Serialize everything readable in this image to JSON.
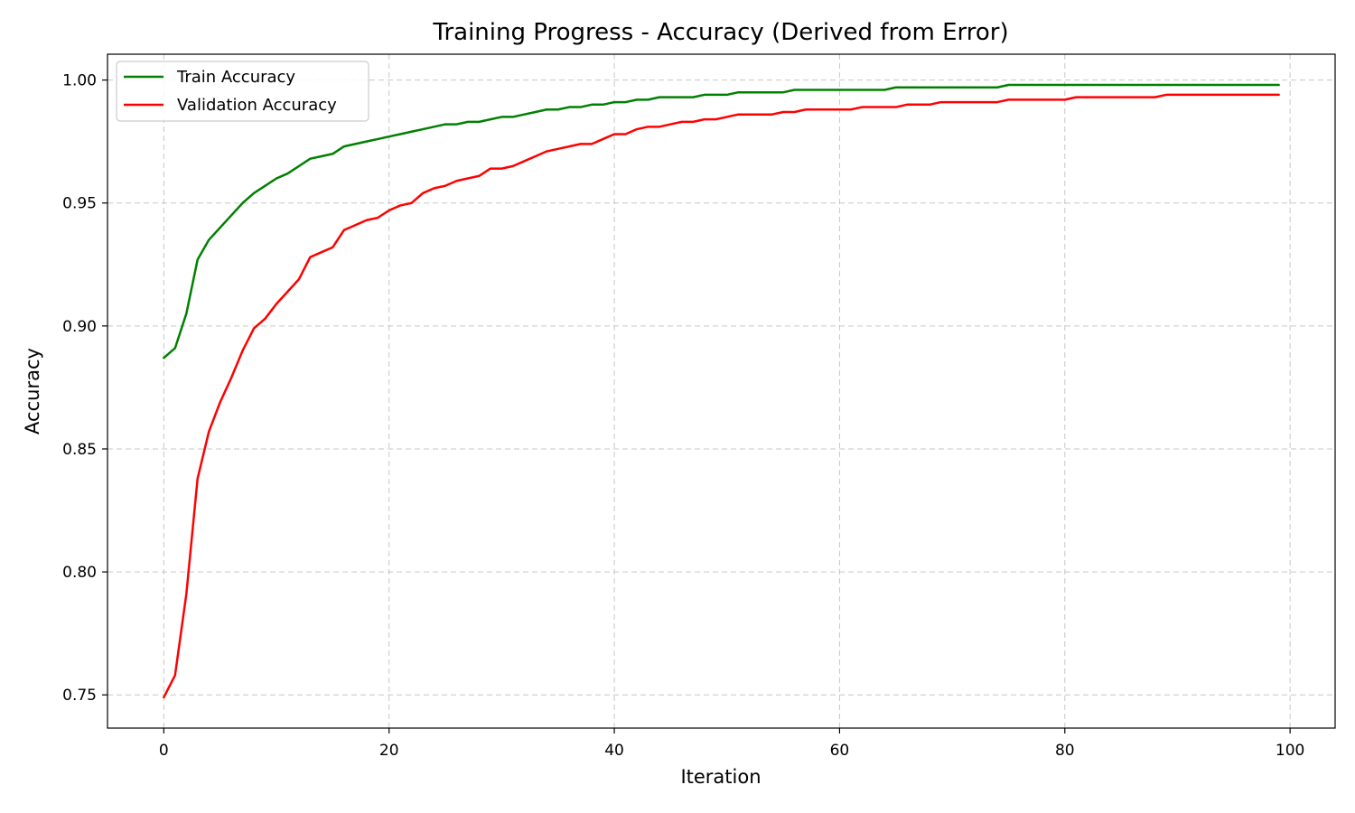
{
  "chart_data": {
    "type": "line",
    "title": "Training Progress - Accuracy (Derived from Error)",
    "xlabel": "Iteration",
    "ylabel": "Accuracy",
    "xlim": [
      -5,
      104
    ],
    "ylim": [
      0.7365,
      1.0105
    ],
    "xticks": [
      0,
      20,
      40,
      60,
      80,
      100
    ],
    "yticks": [
      0.75,
      0.8,
      0.85,
      0.9,
      0.95,
      1.0
    ],
    "xtick_labels": [
      "0",
      "20",
      "40",
      "60",
      "80",
      "100"
    ],
    "ytick_labels": [
      "0.75",
      "0.80",
      "0.85",
      "0.90",
      "0.95",
      "1.00"
    ],
    "grid": true,
    "legend_position": "top-left",
    "x": [
      0,
      1,
      2,
      3,
      4,
      5,
      6,
      7,
      8,
      9,
      10,
      11,
      12,
      13,
      14,
      15,
      16,
      17,
      18,
      19,
      20,
      21,
      22,
      23,
      24,
      25,
      26,
      27,
      28,
      29,
      30,
      31,
      32,
      33,
      34,
      35,
      36,
      37,
      38,
      39,
      40,
      41,
      42,
      43,
      44,
      45,
      46,
      47,
      48,
      49,
      50,
      51,
      52,
      53,
      54,
      55,
      56,
      57,
      58,
      59,
      60,
      61,
      62,
      63,
      64,
      65,
      66,
      67,
      68,
      69,
      70,
      71,
      72,
      73,
      74,
      75,
      76,
      77,
      78,
      79,
      80,
      81,
      82,
      83,
      84,
      85,
      86,
      87,
      88,
      89,
      90,
      91,
      92,
      93,
      94,
      95,
      96,
      97,
      98,
      99
    ],
    "series": [
      {
        "name": "Train Accuracy",
        "color": "#008000",
        "values": [
          0.887,
          0.891,
          0.905,
          0.927,
          0.935,
          0.94,
          0.945,
          0.95,
          0.954,
          0.957,
          0.96,
          0.962,
          0.965,
          0.968,
          0.969,
          0.97,
          0.973,
          0.974,
          0.975,
          0.976,
          0.977,
          0.978,
          0.979,
          0.98,
          0.981,
          0.982,
          0.982,
          0.983,
          0.983,
          0.984,
          0.985,
          0.985,
          0.986,
          0.987,
          0.988,
          0.988,
          0.989,
          0.989,
          0.99,
          0.99,
          0.991,
          0.991,
          0.992,
          0.992,
          0.993,
          0.993,
          0.993,
          0.993,
          0.994,
          0.994,
          0.994,
          0.995,
          0.995,
          0.995,
          0.995,
          0.995,
          0.996,
          0.996,
          0.996,
          0.996,
          0.996,
          0.996,
          0.996,
          0.996,
          0.996,
          0.997,
          0.997,
          0.997,
          0.997,
          0.997,
          0.997,
          0.997,
          0.997,
          0.997,
          0.997,
          0.998,
          0.998,
          0.998,
          0.998,
          0.998,
          0.998,
          0.998,
          0.998,
          0.998,
          0.998,
          0.998,
          0.998,
          0.998,
          0.998,
          0.998,
          0.998,
          0.998,
          0.998,
          0.998,
          0.998,
          0.998,
          0.998,
          0.998,
          0.998,
          0.998
        ]
      },
      {
        "name": "Validation Accuracy",
        "color": "#ff0000",
        "values": [
          0.749,
          0.758,
          0.791,
          0.838,
          0.857,
          0.869,
          0.879,
          0.89,
          0.899,
          0.903,
          0.909,
          0.914,
          0.919,
          0.928,
          0.93,
          0.932,
          0.939,
          0.941,
          0.943,
          0.944,
          0.947,
          0.949,
          0.95,
          0.954,
          0.956,
          0.957,
          0.959,
          0.96,
          0.961,
          0.964,
          0.964,
          0.965,
          0.967,
          0.969,
          0.971,
          0.972,
          0.973,
          0.974,
          0.974,
          0.976,
          0.978,
          0.978,
          0.98,
          0.981,
          0.981,
          0.982,
          0.983,
          0.983,
          0.984,
          0.984,
          0.985,
          0.986,
          0.986,
          0.986,
          0.986,
          0.987,
          0.987,
          0.988,
          0.988,
          0.988,
          0.988,
          0.988,
          0.989,
          0.989,
          0.989,
          0.989,
          0.99,
          0.99,
          0.99,
          0.991,
          0.991,
          0.991,
          0.991,
          0.991,
          0.991,
          0.992,
          0.992,
          0.992,
          0.992,
          0.992,
          0.992,
          0.993,
          0.993,
          0.993,
          0.993,
          0.993,
          0.993,
          0.993,
          0.993,
          0.994,
          0.994,
          0.994,
          0.994,
          0.994,
          0.994,
          0.994,
          0.994,
          0.994,
          0.994,
          0.994
        ]
      }
    ]
  }
}
